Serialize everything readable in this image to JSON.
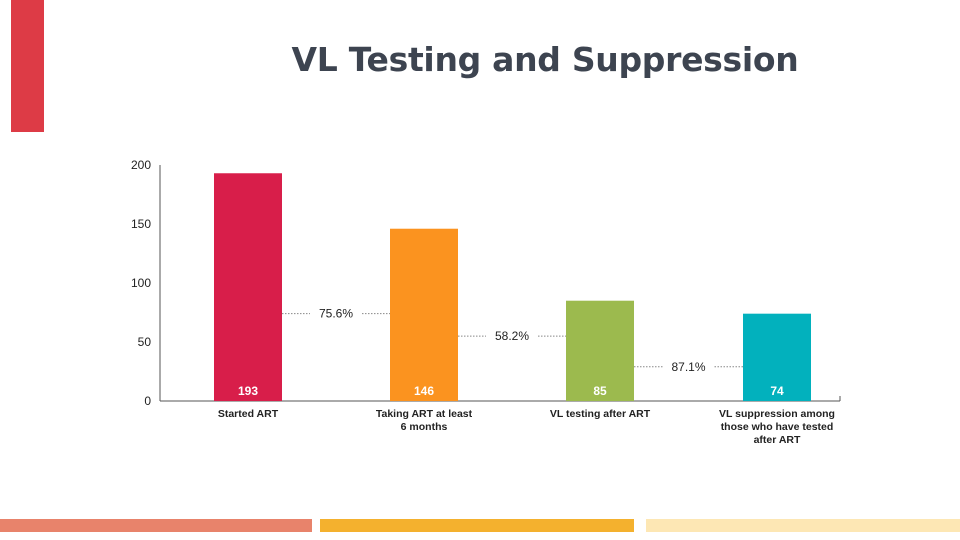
{
  "page": {
    "title": "VL Testing and Suppression"
  },
  "colors": {
    "side_accent": "#dd3b46",
    "title": "#3d4450",
    "axis": "#555555",
    "tick_text": "#222222",
    "label_text": "#222222",
    "connector": "#888888",
    "bar_value_text": "#ffffff",
    "stripes": [
      "#e8836b",
      "#f4b12e",
      "#fde7b4"
    ]
  },
  "chart_data": {
    "type": "bar",
    "title": "",
    "xlabel": "",
    "ylabel": "",
    "ylim": [
      0,
      200
    ],
    "yticks": [
      0,
      50,
      100,
      150,
      200
    ],
    "grid": false,
    "categories": [
      [
        "Started ART"
      ],
      [
        "Taking ART at least",
        "6 months"
      ],
      [
        "VL testing after ART"
      ],
      [
        "VL suppression among",
        "those who have tested",
        "after ART"
      ]
    ],
    "values": [
      193,
      146,
      85,
      74
    ],
    "value_labels": [
      "193",
      "146",
      "85",
      "74"
    ],
    "bar_colors": [
      "#d81e4a",
      "#fb931f",
      "#9cba4e",
      "#02b1bd"
    ],
    "annotations": [
      {
        "text": "75.6%",
        "between": [
          0,
          1
        ],
        "y": 74
      },
      {
        "text": "58.2%",
        "between": [
          1,
          2
        ],
        "y": 55
      },
      {
        "text": "87.1%",
        "between": [
          2,
          3
        ],
        "y": 29
      }
    ]
  }
}
